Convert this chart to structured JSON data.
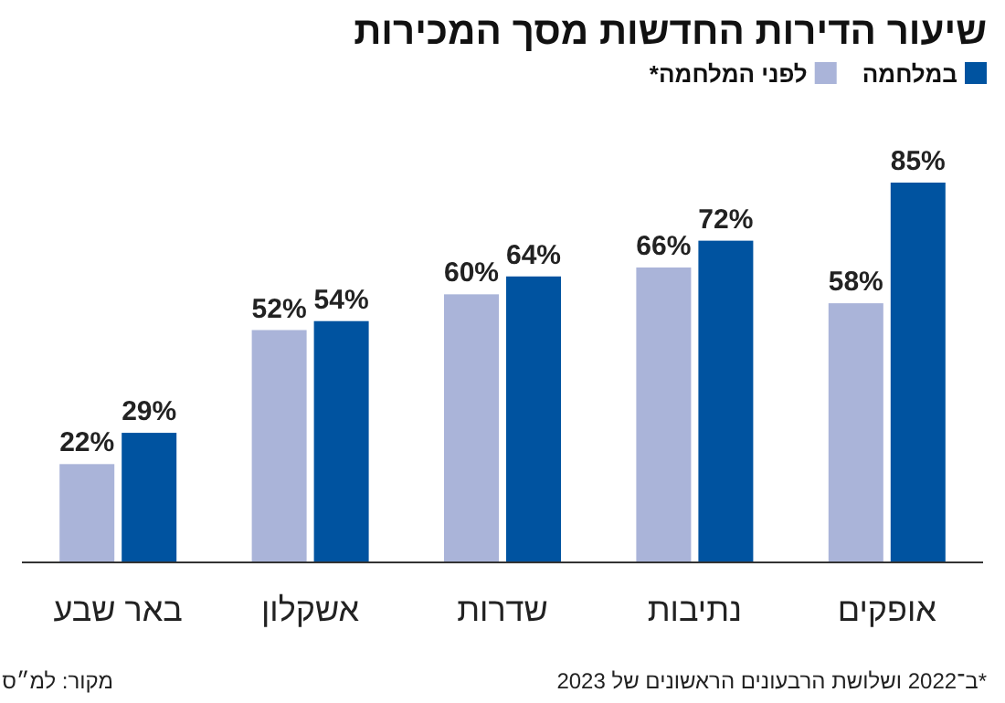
{
  "chart_data": {
    "type": "bar",
    "title": "שיעור הדירות החדשות מסך המכירות",
    "categories": [
      "באר שבע",
      "אשקלון",
      "שדרות",
      "נתיבות",
      "אופקים"
    ],
    "series": [
      {
        "name": "לפני המלחמה*",
        "color": "#aab4d9",
        "values": [
          22,
          52,
          60,
          66,
          58
        ],
        "value_labels": [
          "22%",
          "52%",
          "60%",
          "66%",
          "58%"
        ]
      },
      {
        "name": "במלחמה",
        "color": "#0053a0",
        "values": [
          29,
          54,
          64,
          72,
          85
        ],
        "value_labels": [
          "29%",
          "54%",
          "64%",
          "72%",
          "85%"
        ]
      }
    ],
    "legend": "top right",
    "annotations": [
      "*ב־2022 ושלושת הרבעונים הראשונים של 2023",
      "מקור: למ״ס"
    ]
  }
}
